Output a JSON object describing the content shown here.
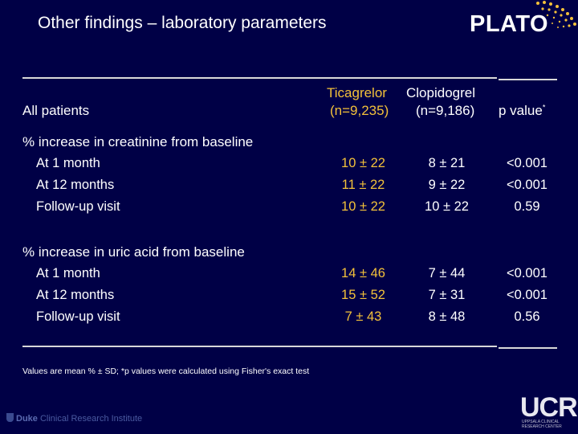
{
  "title": "Other findings – laboratory parameters",
  "logo": "PLATO",
  "header": {
    "row_label": "All patients",
    "col1_name": "Ticagrelor",
    "col1_n": "(n=9,235)",
    "col2_name": "Clopidogrel",
    "col2_n": "(n=9,186)",
    "col3_name": "p value",
    "col3_mark": "*"
  },
  "sections": [
    {
      "label": "% increase in creatinine from baseline",
      "rows": [
        {
          "label": "At 1 month",
          "ticagrelor": "10 ± 22",
          "clopidogrel": "8 ± 21",
          "p": "<0.001"
        },
        {
          "label": "At 12 months",
          "ticagrelor": "11 ± 22",
          "clopidogrel": "9 ± 22",
          "p": "<0.001"
        },
        {
          "label": "Follow-up visit",
          "ticagrelor": "10 ± 22",
          "clopidogrel": "10 ± 22",
          "p": "0.59"
        }
      ]
    },
    {
      "label": "% increase in uric acid from baseline",
      "rows": [
        {
          "label": "At 1 month",
          "ticagrelor": "14 ± 46",
          "clopidogrel": "7 ± 44",
          "p": "<0.001"
        },
        {
          "label": "At 12 months",
          "ticagrelor": "15 ± 52",
          "clopidogrel": "7 ± 31",
          "p": "<0.001"
        },
        {
          "label": "Follow-up visit",
          "ticagrelor": "7 ± 43",
          "clopidogrel": "8 ± 48",
          "p": "0.56"
        }
      ]
    }
  ],
  "footnote": "Values are mean % ± SD; *p values were calculated using Fisher's exact test",
  "footer_left": {
    "brand": "Duke",
    "rest": "Clinical Research Institute"
  },
  "footer_right": {
    "logo": "UCR",
    "sub": "UPPSALA CLINICAL RESEARCH CENTER"
  },
  "colors": {
    "background": "#000046",
    "ticagrelor": "#f3c13a",
    "text": "#ffffff",
    "dots": "#f3c13a"
  }
}
